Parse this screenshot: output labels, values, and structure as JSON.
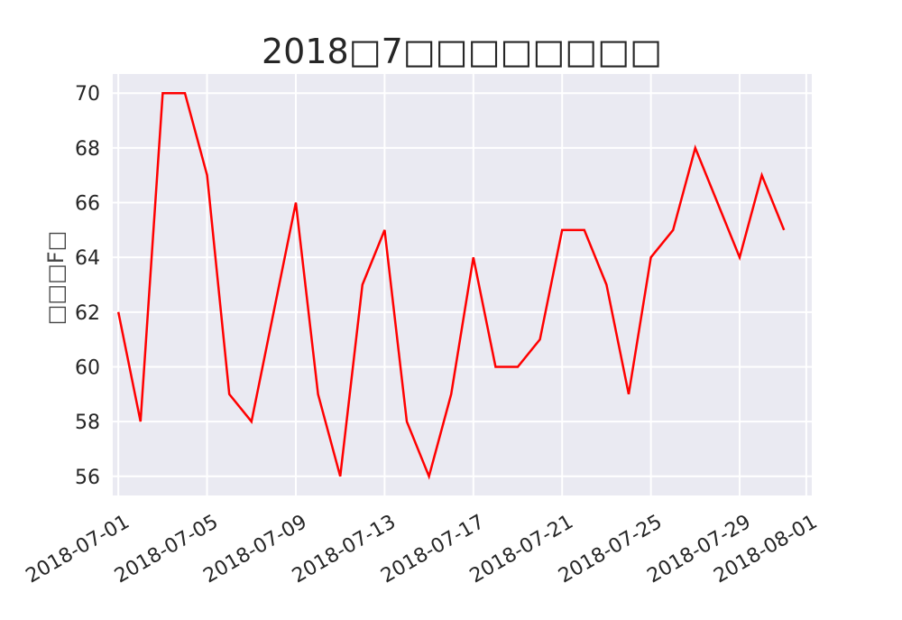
{
  "chart_data": {
    "type": "line",
    "title": "2018□7□□□□□□□□",
    "xlabel": "",
    "ylabel": "□□□F□",
    "x": [
      "2018-07-01",
      "2018-07-02",
      "2018-07-03",
      "2018-07-04",
      "2018-07-05",
      "2018-07-06",
      "2018-07-07",
      "2018-07-08",
      "2018-07-09",
      "2018-07-10",
      "2018-07-11",
      "2018-07-12",
      "2018-07-13",
      "2018-07-14",
      "2018-07-15",
      "2018-07-16",
      "2018-07-17",
      "2018-07-18",
      "2018-07-19",
      "2018-07-20",
      "2018-07-21",
      "2018-07-22",
      "2018-07-23",
      "2018-07-24",
      "2018-07-25",
      "2018-07-26",
      "2018-07-27",
      "2018-07-28",
      "2018-07-29",
      "2018-07-30",
      "2018-07-31"
    ],
    "series": [
      {
        "color": "#ff0000",
        "values": [
          62,
          58,
          70,
          70,
          67,
          59,
          58,
          62,
          66,
          59,
          56,
          63,
          65,
          58,
          56,
          59,
          64,
          60,
          60,
          61,
          65,
          65,
          63,
          59,
          64,
          65,
          68,
          66,
          64,
          67,
          65
        ]
      }
    ],
    "xticks": [
      "2018-07-01",
      "2018-07-05",
      "2018-07-09",
      "2018-07-13",
      "2018-07-17",
      "2018-07-21",
      "2018-07-25",
      "2018-07-29",
      "2018-08-01"
    ],
    "yticks": [
      56,
      58,
      60,
      62,
      64,
      66,
      68,
      70
    ],
    "xlim": [
      "2018-06-30.75",
      "2018-08-01.25"
    ],
    "ylim": [
      55.3,
      70.7
    ],
    "grid": true,
    "style": {
      "plot_bg": "#eaeaf2",
      "grid_color": "#ffffff"
    }
  }
}
